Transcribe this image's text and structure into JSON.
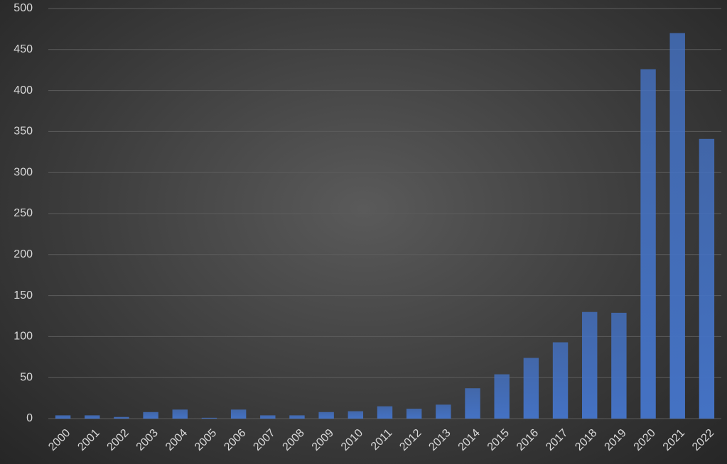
{
  "chart_data": {
    "type": "bar",
    "categories": [
      "2000",
      "2001",
      "2002",
      "2003",
      "2004",
      "2005",
      "2006",
      "2007",
      "2008",
      "2009",
      "2010",
      "2011",
      "2012",
      "2013",
      "2014",
      "2015",
      "2016",
      "2017",
      "2018",
      "2019",
      "2020",
      "2021",
      "2022"
    ],
    "values": [
      4,
      4,
      2,
      8,
      11,
      1,
      11,
      4,
      4,
      8,
      9,
      15,
      12,
      17,
      37,
      54,
      74,
      93,
      130,
      129,
      426,
      470,
      341
    ],
    "color": "#4472c4",
    "ylim": [
      0,
      500
    ],
    "yticks": [
      0,
      50,
      100,
      150,
      200,
      250,
      300,
      350,
      400,
      450,
      500
    ],
    "grid": true
  }
}
